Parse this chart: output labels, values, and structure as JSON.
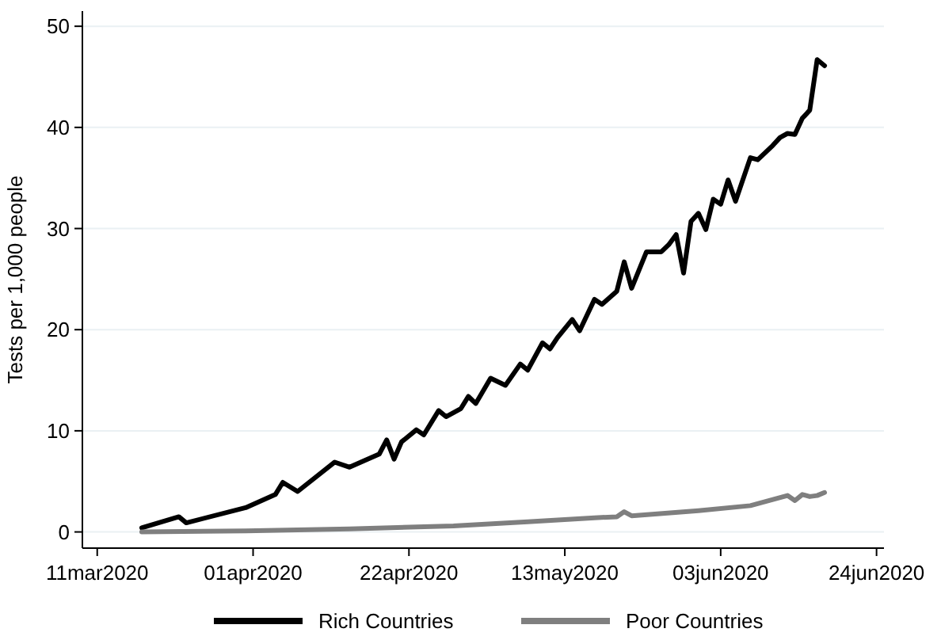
{
  "chart_data": {
    "type": "line",
    "ylabel": "Tests per 1,000 people",
    "xlim": [
      "2020-03-09",
      "2020-06-25"
    ],
    "ylim": [
      -1.6,
      51.5
    ],
    "xticks": [
      {
        "value": "2020-03-11",
        "label": "11mar2020"
      },
      {
        "value": "2020-04-01",
        "label": "01apr2020"
      },
      {
        "value": "2020-04-22",
        "label": "22apr2020"
      },
      {
        "value": "2020-05-13",
        "label": "13may2020"
      },
      {
        "value": "2020-06-03",
        "label": "03jun2020"
      },
      {
        "value": "2020-06-24",
        "label": "24jun2020"
      }
    ],
    "yticks": [
      0,
      10,
      20,
      30,
      40,
      50
    ],
    "grid": "y",
    "legend": "bottom",
    "line_style": "solid",
    "marker": "none",
    "series": [
      {
        "name": "Rich Countries",
        "color": "#000000",
        "x": [
          "2020-03-17",
          "2020-03-22",
          "2020-03-23",
          "2020-03-31",
          "2020-04-04",
          "2020-04-05",
          "2020-04-07",
          "2020-04-12",
          "2020-04-14",
          "2020-04-18",
          "2020-04-19",
          "2020-04-20",
          "2020-04-21",
          "2020-04-23",
          "2020-04-24",
          "2020-04-26",
          "2020-04-27",
          "2020-04-29",
          "2020-04-30",
          "2020-05-01",
          "2020-05-03",
          "2020-05-05",
          "2020-05-07",
          "2020-05-08",
          "2020-05-10",
          "2020-05-11",
          "2020-05-12",
          "2020-05-14",
          "2020-05-15",
          "2020-05-17",
          "2020-05-18",
          "2020-05-20",
          "2020-05-21",
          "2020-05-22",
          "2020-05-24",
          "2020-05-26",
          "2020-05-27",
          "2020-05-28",
          "2020-05-29",
          "2020-05-30",
          "2020-05-31",
          "2020-06-01",
          "2020-06-02",
          "2020-06-03",
          "2020-06-04",
          "2020-06-05",
          "2020-06-07",
          "2020-06-08",
          "2020-06-10",
          "2020-06-11",
          "2020-06-12",
          "2020-06-13",
          "2020-06-14",
          "2020-06-15",
          "2020-06-16",
          "2020-06-17"
        ],
        "values": [
          0.4,
          1.5,
          0.9,
          2.4,
          3.7,
          4.9,
          4.0,
          6.9,
          6.4,
          7.7,
          9.1,
          7.2,
          8.9,
          10.1,
          9.6,
          12.0,
          11.4,
          12.2,
          13.4,
          12.7,
          15.2,
          14.5,
          16.6,
          16.0,
          18.7,
          18.1,
          19.2,
          21.0,
          19.9,
          23.0,
          22.5,
          23.8,
          26.7,
          24.1,
          27.7,
          27.7,
          28.4,
          29.4,
          25.6,
          30.7,
          31.5,
          29.9,
          32.9,
          32.4,
          34.8,
          32.7,
          37.0,
          36.8,
          38.2,
          39.0,
          39.4,
          39.3,
          40.9,
          41.7,
          46.7,
          46.1
        ]
      },
      {
        "name": "Poor Countries",
        "color": "#7f7f7f",
        "x": [
          "2020-03-17",
          "2020-03-31",
          "2020-04-14",
          "2020-04-28",
          "2020-05-08",
          "2020-05-17",
          "2020-05-20",
          "2020-05-21",
          "2020-05-22",
          "2020-05-31",
          "2020-06-07",
          "2020-06-12",
          "2020-06-13",
          "2020-06-14",
          "2020-06-15",
          "2020-06-16",
          "2020-06-17"
        ],
        "values": [
          0.0,
          0.1,
          0.3,
          0.6,
          1.0,
          1.4,
          1.5,
          2.0,
          1.6,
          2.1,
          2.6,
          3.6,
          3.1,
          3.7,
          3.5,
          3.6,
          3.9
        ]
      }
    ]
  }
}
